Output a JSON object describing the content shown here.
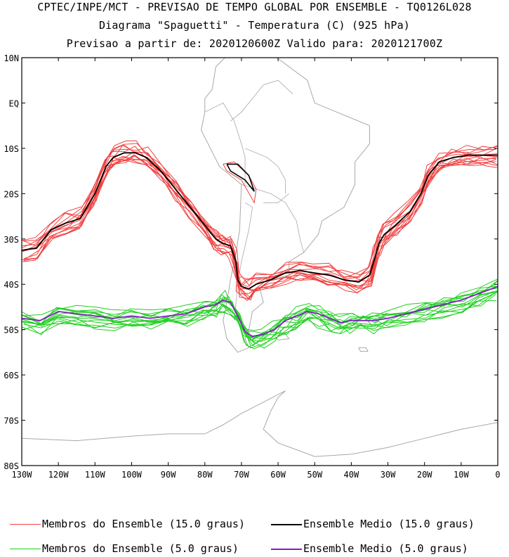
{
  "header": {
    "line1": "CPTEC/INPE/MCT - PREVISAO DE TEMPO GLOBAL POR ENSEMBLE - TQ0126L028",
    "line2": "Diagrama \"Spaguetti\" - Temperatura (C) (925 hPa)",
    "line3": "Previsao a partir de: 2020120600Z  Valido para: 2020121700Z"
  },
  "colors": {
    "members_15": "#f04040",
    "mean_15": "#000000",
    "members_5": "#20d020",
    "mean_5": "#8020c0",
    "coast": "#a8a8a8"
  },
  "legend": {
    "members_15": "Membros do Ensemble (15.0 graus)",
    "mean_15": "Ensemble Medio (15.0 graus)",
    "members_5": "Membros do Ensemble (5.0 graus)",
    "mean_5": "Ensemble Medio (5.0 graus)"
  },
  "chart_data": {
    "type": "line",
    "xlim": [
      -130,
      0
    ],
    "ylim": [
      -80,
      10
    ],
    "x_ticks": [
      "130W",
      "120W",
      "110W",
      "100W",
      "90W",
      "80W",
      "70W",
      "60W",
      "50W",
      "40W",
      "30W",
      "20W",
      "10W",
      "0"
    ],
    "y_ticks": [
      "10N",
      "EQ",
      "10S",
      "20S",
      "30S",
      "40S",
      "50S",
      "60S",
      "70S",
      "80S"
    ],
    "series": [
      {
        "name": "Ensemble Medio (15.0 graus)",
        "x": [
          -130,
          -126,
          -122,
          -118,
          -114,
          -110,
          -107,
          -105,
          -102,
          -99,
          -96,
          -92,
          -88,
          -84,
          -80,
          -77,
          -75,
          -73,
          -71.5,
          -71,
          -70,
          -68,
          -66,
          -62,
          -58,
          -54,
          -50,
          -46,
          -42,
          -38,
          -35,
          -33.5,
          -32.5,
          -31,
          -28,
          -24,
          -21,
          -19,
          -16,
          -12,
          -8,
          -4,
          0
        ],
        "y": [
          -32.5,
          -32,
          -28,
          -26.5,
          -25.5,
          -20,
          -14,
          -12,
          -11,
          -11,
          -12,
          -15,
          -19,
          -23,
          -27,
          -30,
          -31,
          -31.5,
          -35,
          -39,
          -40.5,
          -41,
          -40,
          -39,
          -37.5,
          -37,
          -37.5,
          -38,
          -39,
          -39.5,
          -38,
          -34,
          -31,
          -29,
          -27,
          -24,
          -20,
          -16,
          -13,
          -12,
          -11.5,
          -11.5,
          -11.5
        ]
      },
      {
        "name": "Ensemble Medio (5.0 graus)",
        "x": [
          -130,
          -125,
          -120,
          -115,
          -110,
          -105,
          -100,
          -95,
          -90,
          -85,
          -80,
          -77,
          -75,
          -73,
          -71,
          -69,
          -67,
          -64,
          -61,
          -58,
          -55,
          -52,
          -49,
          -46,
          -43,
          -40,
          -37,
          -34,
          -30,
          -25,
          -20,
          -15,
          -10,
          -5,
          0
        ],
        "y": [
          -47.5,
          -48,
          -46,
          -46.5,
          -47,
          -47.5,
          -47,
          -47.5,
          -47,
          -46.5,
          -45,
          -44.5,
          -43.5,
          -44,
          -47,
          -50.5,
          -51.5,
          -51,
          -50,
          -48,
          -47,
          -46,
          -46.5,
          -47.5,
          -48.5,
          -48,
          -48,
          -48,
          -47.5,
          -46.5,
          -45.5,
          -44.5,
          -43.5,
          -42,
          -40.5
        ]
      }
    ]
  }
}
